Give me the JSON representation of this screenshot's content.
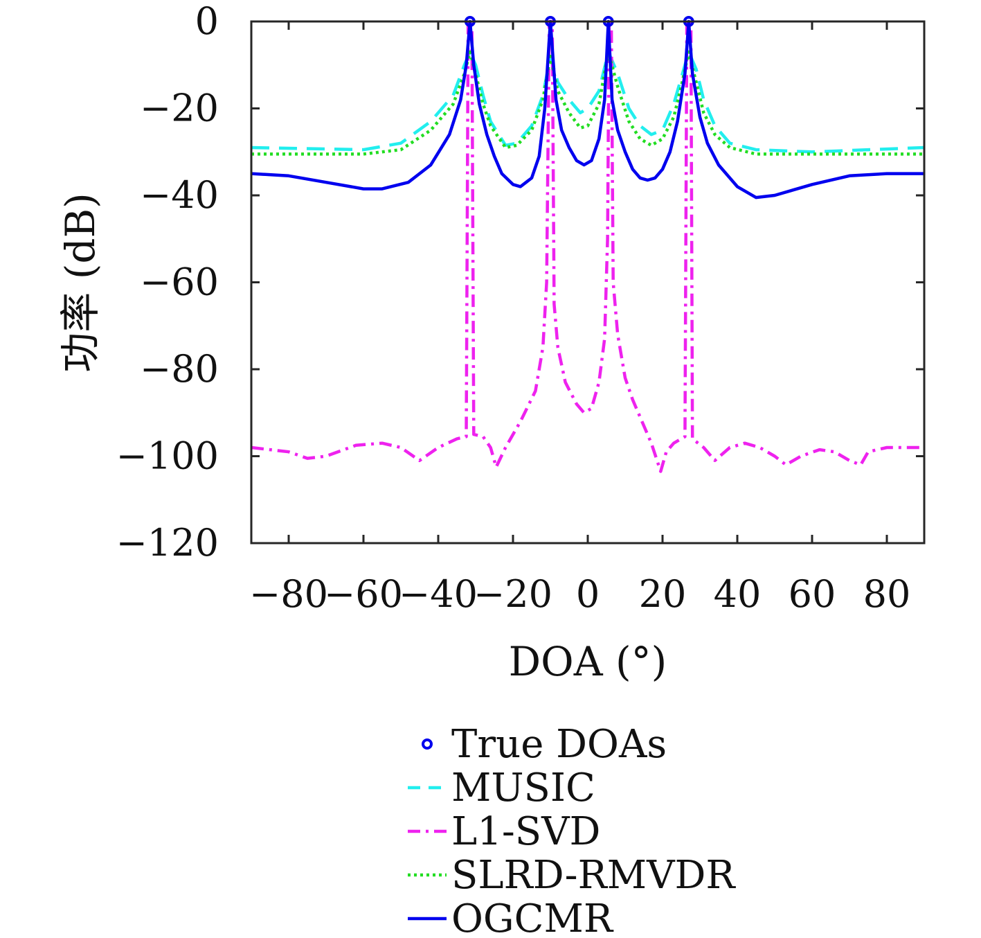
{
  "chart_data": {
    "type": "line",
    "title": "",
    "xlabel": "DOA (°)",
    "ylabel": "功率 (dB)",
    "xlim": [
      -90,
      90
    ],
    "ylim": [
      -120,
      0
    ],
    "xticks": [
      -80,
      -60,
      -40,
      -20,
      0,
      20,
      40,
      60,
      80
    ],
    "yticks": [
      0,
      -20,
      -40,
      -60,
      -80,
      -100,
      -120
    ],
    "xtick_labels": [
      "−80",
      "−60",
      "−40",
      "−20",
      "0",
      "20",
      "40",
      "60",
      "80"
    ],
    "ytick_labels": [
      "0",
      "−20",
      "−40",
      "−60",
      "−80",
      "−100",
      "−120"
    ],
    "grid": false,
    "legend_placement": "below",
    "legend": [
      "True DOAs",
      "MUSIC",
      "L1-SVD",
      "SLRD-RMVDR",
      "OGCMR"
    ],
    "true_doas": {
      "name": "True DOAs",
      "x": [
        -31.5,
        -10.0,
        5.5,
        27.0
      ],
      "y": [
        0,
        0,
        0,
        0
      ],
      "color": "#0000ee",
      "marker": "circle"
    },
    "series": [
      {
        "name": "MUSIC",
        "color": "#22eeee",
        "dash": "dashed",
        "points": [
          [
            -90,
            -29
          ],
          [
            -60,
            -29.5
          ],
          [
            -50,
            -28
          ],
          [
            -42,
            -23
          ],
          [
            -36,
            -17
          ],
          [
            -33,
            -10
          ],
          [
            -31.5,
            -7
          ],
          [
            -30,
            -10
          ],
          [
            -28,
            -17
          ],
          [
            -26,
            -23
          ],
          [
            -22,
            -28.5
          ],
          [
            -19,
            -28
          ],
          [
            -15,
            -24
          ],
          [
            -12,
            -17
          ],
          [
            -10,
            -8
          ],
          [
            -8,
            -14
          ],
          [
            -5,
            -18
          ],
          [
            -2,
            -21
          ],
          [
            0,
            -20
          ],
          [
            3,
            -16
          ],
          [
            5.5,
            -7
          ],
          [
            8,
            -12
          ],
          [
            11,
            -20
          ],
          [
            14,
            -24
          ],
          [
            17,
            -26
          ],
          [
            20,
            -25
          ],
          [
            23,
            -19
          ],
          [
            25,
            -13
          ],
          [
            27,
            -7
          ],
          [
            29,
            -11
          ],
          [
            31,
            -18
          ],
          [
            34,
            -24
          ],
          [
            38,
            -28
          ],
          [
            45,
            -29.5
          ],
          [
            60,
            -30
          ],
          [
            90,
            -29
          ]
        ]
      },
      {
        "name": "L1-SVD",
        "color": "#ee22ee",
        "dash": "dashdot",
        "points": [
          [
            -90,
            -98
          ],
          [
            -80,
            -99
          ],
          [
            -75,
            -100.5
          ],
          [
            -70,
            -100
          ],
          [
            -62,
            -97.5
          ],
          [
            -55,
            -97
          ],
          [
            -50,
            -98
          ],
          [
            -45,
            -101
          ],
          [
            -40,
            -98
          ],
          [
            -35,
            -96
          ],
          [
            -32.5,
            -95.5
          ],
          [
            -32,
            0
          ],
          [
            -31,
            0
          ],
          [
            -30.5,
            -95
          ],
          [
            -28,
            -95.5
          ],
          [
            -26,
            -98
          ],
          [
            -24.5,
            -102.5
          ],
          [
            -22,
            -98
          ],
          [
            -18,
            -92
          ],
          [
            -14,
            -85
          ],
          [
            -12,
            -75
          ],
          [
            -11,
            -60
          ],
          [
            -10.3,
            0
          ],
          [
            -9.5,
            0
          ],
          [
            -9,
            -65
          ],
          [
            -8,
            -75
          ],
          [
            -6,
            -83
          ],
          [
            -3,
            -88
          ],
          [
            -1,
            -90
          ],
          [
            1,
            -89
          ],
          [
            3,
            -83
          ],
          [
            4.5,
            -73
          ],
          [
            5.3,
            -50
          ],
          [
            5.7,
            0
          ],
          [
            6.3,
            0
          ],
          [
            6.8,
            -60
          ],
          [
            8,
            -72
          ],
          [
            10,
            -82
          ],
          [
            12,
            -87
          ],
          [
            15,
            -93
          ],
          [
            17,
            -97
          ],
          [
            19.5,
            -103.5
          ],
          [
            21,
            -99
          ],
          [
            23,
            -97
          ],
          [
            26,
            -95.5
          ],
          [
            26.5,
            0
          ],
          [
            27.6,
            0
          ],
          [
            28,
            -96
          ],
          [
            31,
            -98
          ],
          [
            34,
            -101
          ],
          [
            38,
            -98
          ],
          [
            42,
            -97
          ],
          [
            46,
            -98
          ],
          [
            50,
            -100
          ],
          [
            53,
            -102
          ],
          [
            57,
            -100
          ],
          [
            62,
            -98.5
          ],
          [
            66,
            -99
          ],
          [
            70,
            -101
          ],
          [
            73,
            -102
          ],
          [
            75,
            -99
          ],
          [
            80,
            -98
          ],
          [
            90,
            -98
          ]
        ]
      },
      {
        "name": "SLRD-RMVDR",
        "color": "#22dd22",
        "dash": "dotted",
        "points": [
          [
            -90,
            -30.5
          ],
          [
            -60,
            -30.5
          ],
          [
            -50,
            -29.5
          ],
          [
            -42,
            -25
          ],
          [
            -36,
            -19
          ],
          [
            -33,
            -12
          ],
          [
            -31.5,
            -7
          ],
          [
            -30,
            -12
          ],
          [
            -28,
            -19
          ],
          [
            -26,
            -24
          ],
          [
            -22,
            -29
          ],
          [
            -19,
            -28.5
          ],
          [
            -15,
            -25
          ],
          [
            -12,
            -18
          ],
          [
            -10,
            -8
          ],
          [
            -8,
            -16
          ],
          [
            -5,
            -21
          ],
          [
            -2,
            -24.5
          ],
          [
            0,
            -24
          ],
          [
            3,
            -19
          ],
          [
            5.5,
            -7
          ],
          [
            8,
            -15
          ],
          [
            11,
            -23
          ],
          [
            14,
            -27
          ],
          [
            17,
            -28.5
          ],
          [
            20,
            -27
          ],
          [
            23,
            -22
          ],
          [
            25,
            -15
          ],
          [
            27,
            -7
          ],
          [
            29,
            -14
          ],
          [
            31,
            -21
          ],
          [
            34,
            -26
          ],
          [
            38,
            -29
          ],
          [
            45,
            -30.5
          ],
          [
            60,
            -30.5
          ],
          [
            90,
            -30.5
          ]
        ]
      },
      {
        "name": "OGCMR",
        "color": "#0000ee",
        "dash": "solid",
        "points": [
          [
            -90,
            -35
          ],
          [
            -80,
            -35.5
          ],
          [
            -70,
            -37
          ],
          [
            -60,
            -38.5
          ],
          [
            -55,
            -38.5
          ],
          [
            -48,
            -37
          ],
          [
            -42,
            -33
          ],
          [
            -37,
            -26
          ],
          [
            -34,
            -18
          ],
          [
            -32.5,
            -10
          ],
          [
            -31.5,
            0
          ],
          [
            -30.5,
            -10
          ],
          [
            -29,
            -19
          ],
          [
            -27,
            -26
          ],
          [
            -25,
            -31
          ],
          [
            -23,
            -35
          ],
          [
            -20,
            -37.5
          ],
          [
            -18,
            -38
          ],
          [
            -15,
            -36
          ],
          [
            -13,
            -31
          ],
          [
            -11.5,
            -20
          ],
          [
            -10,
            0
          ],
          [
            -8.5,
            -18
          ],
          [
            -7,
            -25
          ],
          [
            -5,
            -29
          ],
          [
            -3,
            -32
          ],
          [
            -1,
            -33
          ],
          [
            1,
            -32
          ],
          [
            3,
            -27
          ],
          [
            4.5,
            -18
          ],
          [
            5.5,
            0
          ],
          [
            6.5,
            -18
          ],
          [
            8,
            -25
          ],
          [
            10,
            -30
          ],
          [
            12,
            -34
          ],
          [
            14,
            -36
          ],
          [
            16,
            -36.5
          ],
          [
            18,
            -36
          ],
          [
            20,
            -34
          ],
          [
            22,
            -30
          ],
          [
            24,
            -23
          ],
          [
            26,
            -12
          ],
          [
            27,
            0
          ],
          [
            28,
            -12
          ],
          [
            30,
            -22
          ],
          [
            32,
            -28
          ],
          [
            35,
            -33
          ],
          [
            40,
            -38
          ],
          [
            45,
            -40.5
          ],
          [
            50,
            -40
          ],
          [
            60,
            -37.5
          ],
          [
            70,
            -35.5
          ],
          [
            80,
            -35
          ],
          [
            90,
            -35
          ]
        ]
      }
    ]
  }
}
